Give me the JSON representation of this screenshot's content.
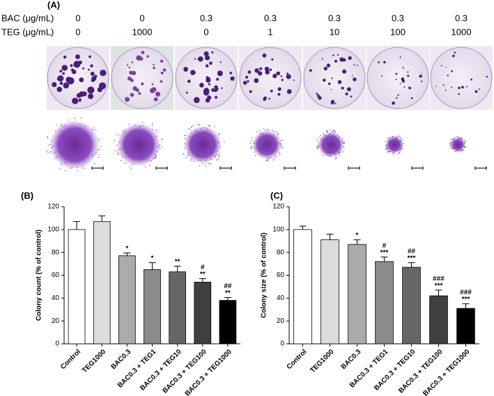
{
  "panel_a": {
    "label": "(A)",
    "rows": [
      {
        "name": "BAC (μg/mL)",
        "values": [
          0,
          0,
          0.3,
          0.3,
          0.3,
          0.3,
          0.3
        ]
      },
      {
        "name": "TEG (μg/mL)",
        "values": [
          0,
          1000,
          0,
          1,
          10,
          100,
          1000
        ]
      }
    ]
  },
  "chart_data": [
    {
      "type": "bar",
      "panel_label": "(B)",
      "ylabel": "Colony count (% of control)",
      "categories": [
        "Control",
        "TEG1000",
        "BAC0.3",
        "BAC0.3 + TEG1",
        "BAC0.3 + TEG10",
        "BAC0.3 + TEG100",
        "BAC0.3 + TEG1000"
      ],
      "values": [
        100,
        107,
        77,
        65,
        63,
        54,
        38
      ],
      "errors": [
        7,
        5,
        2.5,
        6,
        5,
        3,
        2.5
      ],
      "colors": [
        "#ffffff",
        "#dcdcdc",
        "#ababab",
        "#8a8a8a",
        "#666666",
        "#404040",
        "#000000"
      ],
      "significance": [
        null,
        null,
        [
          "*"
        ],
        [
          "*"
        ],
        [
          "**"
        ],
        [
          "#",
          "**"
        ],
        [
          "##",
          "**"
        ]
      ],
      "ylim": [
        0,
        120
      ],
      "yticks": [
        0,
        20,
        40,
        60,
        80,
        100,
        120
      ]
    },
    {
      "type": "bar",
      "panel_label": "(C)",
      "ylabel": "Colony size (% of control)",
      "categories": [
        "Control",
        "TEG1000",
        "BAC0.3",
        "BAC0.3 + TEG1",
        "BAC0.3 + TEG10",
        "BAC0.3 + TEG100",
        "BAC0.3 + TEG1000"
      ],
      "values": [
        100,
        91,
        87,
        72,
        67,
        42,
        31
      ],
      "errors": [
        3,
        5,
        4,
        4,
        4,
        5,
        4
      ],
      "colors": [
        "#ffffff",
        "#dcdcdc",
        "#ababab",
        "#8a8a8a",
        "#666666",
        "#404040",
        "#000000"
      ],
      "significance": [
        null,
        null,
        [
          "*"
        ],
        [
          "#",
          "***"
        ],
        [
          "##",
          "***"
        ],
        [
          "###",
          "***"
        ],
        [
          "###",
          "***"
        ]
      ],
      "ylim": [
        0,
        120
      ],
      "yticks": [
        0,
        20,
        40,
        60,
        80,
        100,
        120
      ]
    }
  ]
}
